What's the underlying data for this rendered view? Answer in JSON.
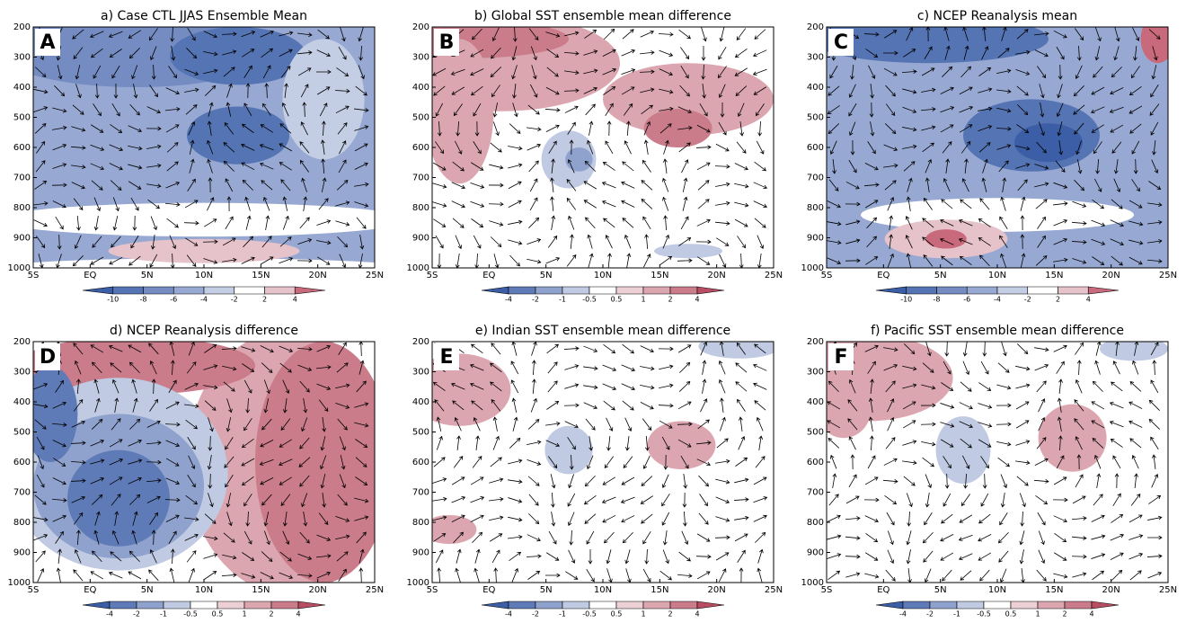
{
  "chart_data": [
    {
      "type": "contour",
      "title": "a) Case CTL JJAS Ensemble Mean",
      "label": "A",
      "xlim": [
        -5,
        25
      ],
      "xticks": [
        {
          "value": -5,
          "label": "5S"
        },
        {
          "value": 0,
          "label": "EQ"
        },
        {
          "value": 5,
          "label": "5N"
        },
        {
          "value": 10,
          "label": "10N"
        },
        {
          "value": 15,
          "label": "15N"
        },
        {
          "value": 20,
          "label": "20N"
        },
        {
          "value": 25,
          "label": "25N"
        }
      ],
      "ylim": [
        1000,
        200
      ],
      "yticks": [
        200,
        300,
        400,
        500,
        600,
        700,
        800,
        900,
        1000
      ],
      "colorbar": {
        "ticks": [
          -10,
          -8,
          -6,
          -4,
          -2,
          2,
          4
        ],
        "colors": [
          "#3b5ea6",
          "#5574b3",
          "#748cc2",
          "#97a8d2",
          "#c3cde3",
          "#ffffff",
          "#e6c3ca",
          "#c8697c"
        ]
      }
    },
    {
      "type": "contour",
      "title": "b) Global SST ensemble mean difference",
      "label": "B",
      "xlim": [
        -5,
        25
      ],
      "xticks": [
        {
          "value": -5,
          "label": "5S"
        },
        {
          "value": 0,
          "label": "EQ"
        },
        {
          "value": 5,
          "label": "5N"
        },
        {
          "value": 10,
          "label": "10N"
        },
        {
          "value": 15,
          "label": "15N"
        },
        {
          "value": 20,
          "label": "20N"
        },
        {
          "value": 25,
          "label": "25N"
        }
      ],
      "ylim": [
        1000,
        200
      ],
      "yticks": [
        200,
        300,
        400,
        500,
        600,
        700,
        800,
        900,
        1000
      ],
      "colorbar": {
        "ticks": [
          -4,
          -2,
          -1,
          -0.5,
          0.5,
          1,
          2,
          4
        ],
        "colors": [
          "#3b5ea6",
          "#5f7bb7",
          "#8fa2cd",
          "#c0cae2",
          "#ffffff",
          "#ecd0d5",
          "#dca6b0",
          "#cb7c8b",
          "#b84d63"
        ]
      }
    },
    {
      "type": "contour",
      "title": "c) NCEP Reanalysis mean",
      "label": "C",
      "xlim": [
        -5,
        25
      ],
      "xticks": [
        {
          "value": -5,
          "label": "5S"
        },
        {
          "value": 0,
          "label": "EQ"
        },
        {
          "value": 5,
          "label": "5N"
        },
        {
          "value": 10,
          "label": "10N"
        },
        {
          "value": 15,
          "label": "15N"
        },
        {
          "value": 20,
          "label": "20N"
        },
        {
          "value": 25,
          "label": "25N"
        }
      ],
      "ylim": [
        1000,
        200
      ],
      "yticks": [
        200,
        300,
        400,
        500,
        600,
        700,
        800,
        900,
        1000
      ],
      "colorbar": {
        "ticks": [
          -10,
          -8,
          -6,
          -4,
          -2,
          2,
          4
        ],
        "colors": [
          "#3b5ea6",
          "#5574b3",
          "#748cc2",
          "#97a8d2",
          "#c3cde3",
          "#ffffff",
          "#e6c3ca",
          "#c8697c"
        ]
      }
    },
    {
      "type": "contour",
      "title": "d) NCEP Reanalysis difference",
      "label": "D",
      "xlim": [
        -5,
        25
      ],
      "xticks": [
        {
          "value": -5,
          "label": "5S"
        },
        {
          "value": 0,
          "label": "EQ"
        },
        {
          "value": 5,
          "label": "5N"
        },
        {
          "value": 10,
          "label": "10N"
        },
        {
          "value": 15,
          "label": "15N"
        },
        {
          "value": 20,
          "label": "20N"
        },
        {
          "value": 25,
          "label": "25N"
        }
      ],
      "ylim": [
        1000,
        200
      ],
      "yticks": [
        200,
        300,
        400,
        500,
        600,
        700,
        800,
        900,
        1000
      ],
      "colorbar": {
        "ticks": [
          -4,
          -2,
          -1,
          -0.5,
          0.5,
          1,
          2,
          4
        ],
        "colors": [
          "#3b5ea6",
          "#5f7bb7",
          "#8fa2cd",
          "#c0cae2",
          "#ffffff",
          "#ecd0d5",
          "#dca6b0",
          "#cb7c8b",
          "#b84d63"
        ]
      }
    },
    {
      "type": "contour",
      "title": "e) Indian SST ensemble mean difference",
      "label": "E",
      "xlim": [
        -5,
        25
      ],
      "xticks": [
        {
          "value": -5,
          "label": "5S"
        },
        {
          "value": 0,
          "label": "EQ"
        },
        {
          "value": 5,
          "label": "5N"
        },
        {
          "value": 10,
          "label": "10N"
        },
        {
          "value": 15,
          "label": "15N"
        },
        {
          "value": 20,
          "label": "20N"
        },
        {
          "value": 25,
          "label": "25N"
        }
      ],
      "ylim": [
        1000,
        200
      ],
      "yticks": [
        200,
        300,
        400,
        500,
        600,
        700,
        800,
        900,
        1000
      ],
      "colorbar": {
        "ticks": [
          -4,
          -2,
          -1,
          -0.5,
          0.5,
          1,
          2,
          4
        ],
        "colors": [
          "#3b5ea6",
          "#5f7bb7",
          "#8fa2cd",
          "#c0cae2",
          "#ffffff",
          "#ecd0d5",
          "#dca6b0",
          "#cb7c8b",
          "#b84d63"
        ]
      }
    },
    {
      "type": "contour",
      "title": "f) Pacific SST ensemble mean difference",
      "label": "F",
      "xlim": [
        -5,
        25
      ],
      "xticks": [
        {
          "value": -5,
          "label": "5S"
        },
        {
          "value": 0,
          "label": "EQ"
        },
        {
          "value": 5,
          "label": "5N"
        },
        {
          "value": 10,
          "label": "10N"
        },
        {
          "value": 15,
          "label": "15N"
        },
        {
          "value": 20,
          "label": "20N"
        },
        {
          "value": 25,
          "label": "25N"
        }
      ],
      "ylim": [
        1000,
        200
      ],
      "yticks": [
        200,
        300,
        400,
        500,
        600,
        700,
        800,
        900,
        1000
      ],
      "colorbar": {
        "ticks": [
          -4,
          -2,
          -1,
          -0.5,
          0.5,
          1,
          2,
          4
        ],
        "colors": [
          "#3b5ea6",
          "#5f7bb7",
          "#8fa2cd",
          "#c0cae2",
          "#ffffff",
          "#ecd0d5",
          "#dca6b0",
          "#cb7c8b",
          "#b84d63"
        ]
      }
    }
  ]
}
